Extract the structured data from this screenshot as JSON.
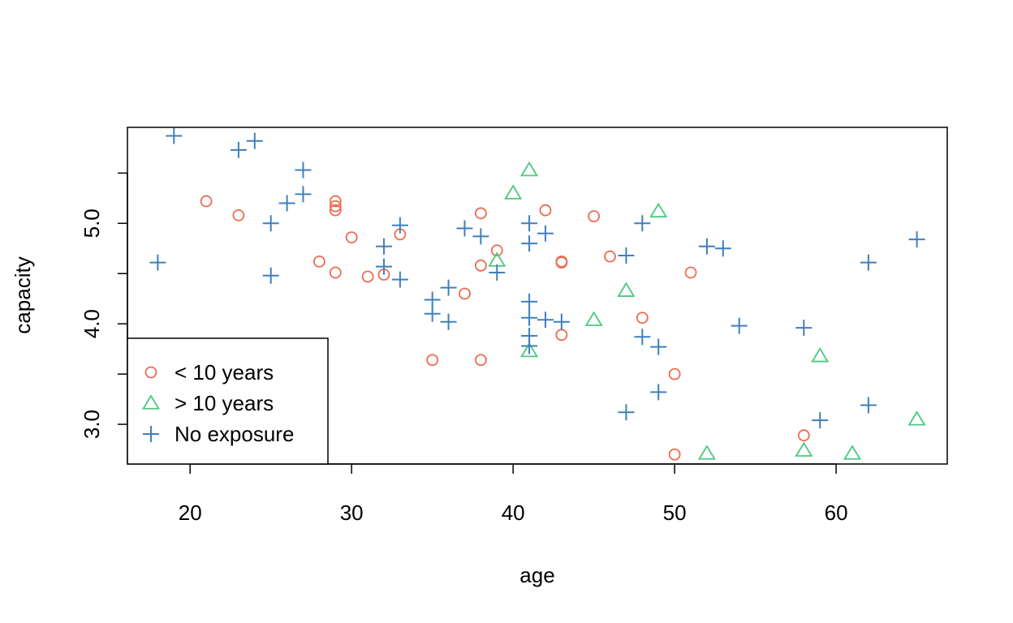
{
  "chart_data": {
    "type": "scatter",
    "xlabel": "age",
    "ylabel": "capacity",
    "xlim": [
      16.12,
      66.88
    ],
    "ylim": [
      2.605,
      5.955
    ],
    "x_ticks": [
      20,
      30,
      40,
      50,
      60
    ],
    "y_ticks": [
      3.0,
      3.5,
      4.0,
      4.5,
      5.0,
      5.5
    ],
    "y_tick_labels": [
      "3.0",
      "",
      "4.0",
      "",
      "5.0",
      ""
    ],
    "legend_position": "bottom-left",
    "colors": {
      "lt10": "#EE6A50",
      "gt10": "#4BC97F",
      "none": "#3F7FBF",
      "axis": "#000000"
    },
    "series": [
      {
        "name": "< 10 years",
        "marker": "circle",
        "x": [
          21,
          23,
          28,
          29,
          29,
          29,
          29,
          30,
          31,
          32,
          33,
          35,
          37,
          38,
          38,
          38,
          39,
          42,
          43,
          43,
          43,
          45,
          46,
          48,
          50,
          50,
          51,
          58
        ],
        "y": [
          5.22,
          5.08,
          4.62,
          5.22,
          5.17,
          5.13,
          4.51,
          4.86,
          4.47,
          4.49,
          4.89,
          3.64,
          4.3,
          5.1,
          4.58,
          3.64,
          4.73,
          5.13,
          4.61,
          4.62,
          3.89,
          5.07,
          4.67,
          4.06,
          3.5,
          2.7,
          4.51,
          2.89
        ]
      },
      {
        "name": "> 10 years",
        "marker": "triangle",
        "x": [
          39,
          40,
          41,
          41,
          45,
          47,
          49,
          52,
          58,
          59,
          61,
          65
        ],
        "y": [
          4.63,
          5.3,
          5.53,
          3.73,
          4.04,
          4.33,
          5.12,
          2.71,
          2.74,
          3.68,
          2.71,
          3.05
        ]
      },
      {
        "name": "No exposure",
        "marker": "plus",
        "x": [
          18,
          19,
          23,
          24,
          25,
          25,
          26,
          27,
          27,
          32,
          32,
          33,
          33,
          35,
          35,
          36,
          36,
          37,
          38,
          39,
          41,
          41,
          41,
          41,
          41,
          41,
          42,
          42,
          43,
          47,
          47,
          48,
          48,
          49,
          49,
          52,
          53,
          54,
          58,
          59,
          62,
          62,
          65
        ],
        "y": [
          4.61,
          5.87,
          5.73,
          5.82,
          5.0,
          4.48,
          5.2,
          5.53,
          5.29,
          4.77,
          4.57,
          4.98,
          4.44,
          4.24,
          4.1,
          4.36,
          4.02,
          4.95,
          4.87,
          4.51,
          5.0,
          4.8,
          4.22,
          4.06,
          3.88,
          3.78,
          4.9,
          4.04,
          4.02,
          4.68,
          3.12,
          5.0,
          3.87,
          3.77,
          3.32,
          4.77,
          4.75,
          3.98,
          3.96,
          3.04,
          3.19,
          4.61,
          4.84
        ]
      }
    ]
  }
}
